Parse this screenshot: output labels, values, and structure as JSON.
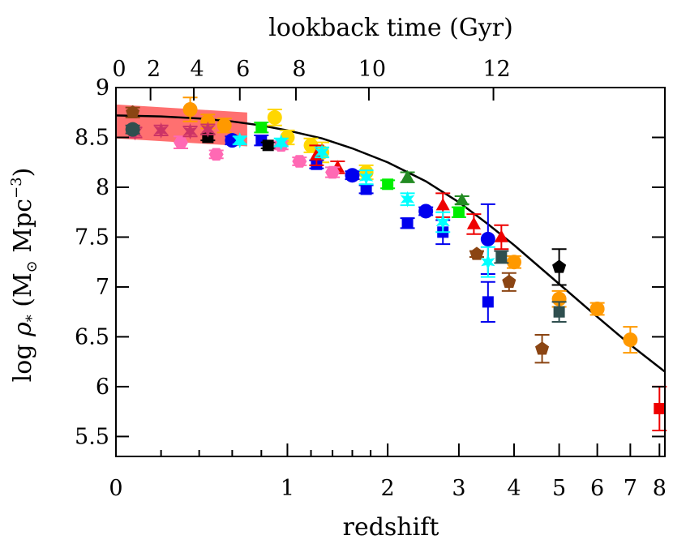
{
  "chart_data": {
    "type": "scatter",
    "xlabel": "redshift",
    "x2label": "lookback time (Gyr)",
    "ylabel_parts": {
      "prefix": "log ",
      "rho": "ρ",
      "star": "*",
      "open": " (M",
      "sun": "⊙",
      "mpc": " Mpc",
      "exp": "−3",
      "close": ")"
    },
    "x_scale": "log(1+z)",
    "xlim": [
      0,
      8.2
    ],
    "ylim": [
      5.3,
      9.0
    ],
    "x_ticks": [
      0,
      1,
      2,
      3,
      4,
      5,
      6,
      7,
      8
    ],
    "y_ticks": [
      5.5,
      6,
      6.5,
      7,
      7.5,
      8,
      8.5,
      9
    ],
    "y_tick_labels": [
      "5.5",
      "6",
      "6.5",
      "7",
      "7.5",
      "8",
      "8.5",
      "9"
    ],
    "top_ticks": [
      {
        "label": "0",
        "z": 0
      },
      {
        "label": "2",
        "z": 0.15
      },
      {
        "label": "4",
        "z": 0.37
      },
      {
        "label": "6",
        "z": 0.65
      },
      {
        "label": "8",
        "z": 1.07
      },
      {
        "label": "10",
        "z": 1.78
      },
      {
        "label": "12",
        "z": 3.6
      }
    ],
    "band": {
      "color": "#ff3333",
      "points": [
        [
          0,
          8.66
        ],
        [
          0.7,
          8.58
        ]
      ],
      "half_width": 0.17
    },
    "model": {
      "color": "#000000",
      "x": [
        0,
        0.2,
        0.4,
        0.6,
        0.8,
        1,
        1.3,
        1.6,
        2,
        2.5,
        3,
        3.5,
        4,
        5,
        6,
        7,
        8.2
      ],
      "y": [
        8.72,
        8.71,
        8.69,
        8.66,
        8.62,
        8.57,
        8.49,
        8.39,
        8.25,
        8.06,
        7.85,
        7.63,
        7.42,
        7.03,
        6.7,
        6.42,
        6.15
      ]
    },
    "series": [
      {
        "color": "#ff9900",
        "shape": "circle",
        "points": [
          [
            0.35,
            8.78,
            0.12
          ],
          [
            0.45,
            8.66,
            0.07
          ],
          [
            0.55,
            8.62,
            0.07
          ],
          [
            4.0,
            7.25,
            0.06
          ],
          [
            5.0,
            6.88,
            0.08
          ],
          [
            6.0,
            6.78,
            0.06
          ],
          [
            7.0,
            6.47,
            0.13
          ]
        ]
      },
      {
        "color": "#ffd700",
        "shape": "circle",
        "points": [
          [
            0.9,
            8.7,
            0.08
          ],
          [
            1.0,
            8.5,
            0.07
          ],
          [
            1.2,
            8.42,
            0.07
          ],
          [
            1.3,
            8.35,
            0.1
          ],
          [
            1.75,
            8.15,
            0.07
          ]
        ]
      },
      {
        "color": "#00ee00",
        "shape": "square",
        "points": [
          [
            0.8,
            8.6,
            0.05
          ],
          [
            2.0,
            8.03,
            0.04
          ],
          [
            3.0,
            7.75,
            0.05
          ]
        ]
      },
      {
        "color": "#0000ee",
        "shape": "square",
        "points": [
          [
            0.8,
            8.47,
            0.05
          ],
          [
            1.25,
            8.23,
            0.04
          ],
          [
            1.75,
            7.98,
            0.04
          ],
          [
            2.25,
            7.64,
            0.05
          ],
          [
            2.75,
            7.55,
            0.12
          ],
          [
            3.5,
            6.85,
            0.2
          ]
        ]
      },
      {
        "color": "#0000ee",
        "shape": "circle",
        "points": [
          [
            0.6,
            8.47,
            0.04
          ],
          [
            1.6,
            8.12,
            0.04
          ],
          [
            2.5,
            7.76,
            0.04
          ],
          [
            3.5,
            7.48,
            0.35
          ]
        ]
      },
      {
        "color": "#ee0000",
        "shape": "triangle",
        "points": [
          [
            1.25,
            8.32,
            0.1
          ],
          [
            1.45,
            8.2,
            0.06
          ],
          [
            2.75,
            7.82,
            0.12
          ],
          [
            3.25,
            7.63,
            0.1
          ],
          [
            3.75,
            7.5,
            0.12
          ]
        ]
      },
      {
        "color": "#ee0000",
        "shape": "square",
        "points": [
          [
            8.0,
            5.78,
            0.22
          ]
        ]
      },
      {
        "color": "#228b22",
        "shape": "triangle",
        "points": [
          [
            2.25,
            8.1,
            0.05
          ],
          [
            3.05,
            7.87,
            0.04
          ]
        ]
      },
      {
        "color": "#000000",
        "shape": "square",
        "points": [
          [
            0.45,
            8.5,
            0.03
          ],
          [
            0.85,
            8.42,
            0.03
          ]
        ]
      },
      {
        "color": "#000000",
        "shape": "pentagon",
        "points": [
          [
            5.0,
            7.2,
            0.18
          ]
        ]
      },
      {
        "color": "#ff69b4",
        "shape": "hexagon",
        "points": [
          [
            0.3,
            8.45,
            0.06
          ],
          [
            0.5,
            8.33,
            0.04
          ],
          [
            0.95,
            8.42,
            0.04
          ],
          [
            1.1,
            8.26,
            0.04
          ],
          [
            1.4,
            8.15,
            0.05
          ]
        ]
      },
      {
        "color": "#cc3366",
        "shape": "star",
        "points": [
          [
            0.08,
            8.55,
            0.05
          ],
          [
            0.2,
            8.57,
            0.05
          ],
          [
            0.35,
            8.56,
            0.05
          ],
          [
            0.45,
            8.58,
            0.05
          ]
        ]
      },
      {
        "color": "#8b4513",
        "shape": "pentagon",
        "points": [
          [
            3.3,
            7.33,
            0.03
          ],
          [
            3.9,
            7.05,
            0.09
          ],
          [
            4.6,
            6.38,
            0.14
          ],
          [
            0.07,
            8.75,
            0.05
          ]
        ]
      },
      {
        "color": "#2f4f4f",
        "shape": "square",
        "points": [
          [
            3.75,
            7.3,
            0.06
          ],
          [
            5.0,
            6.75,
            0.1
          ]
        ]
      },
      {
        "color": "#2f4f4f",
        "shape": "circle",
        "points": [
          [
            0.07,
            8.58,
            0.04
          ]
        ]
      },
      {
        "color": "#00ffff",
        "shape": "star",
        "points": [
          [
            0.65,
            8.47,
            0.04
          ],
          [
            0.95,
            8.45,
            0.04
          ],
          [
            1.3,
            8.35,
            0.05
          ],
          [
            1.75,
            8.1,
            0.07
          ],
          [
            2.25,
            7.88,
            0.06
          ],
          [
            2.75,
            7.65,
            0.1
          ],
          [
            3.5,
            7.25,
            0.15
          ]
        ]
      }
    ]
  }
}
